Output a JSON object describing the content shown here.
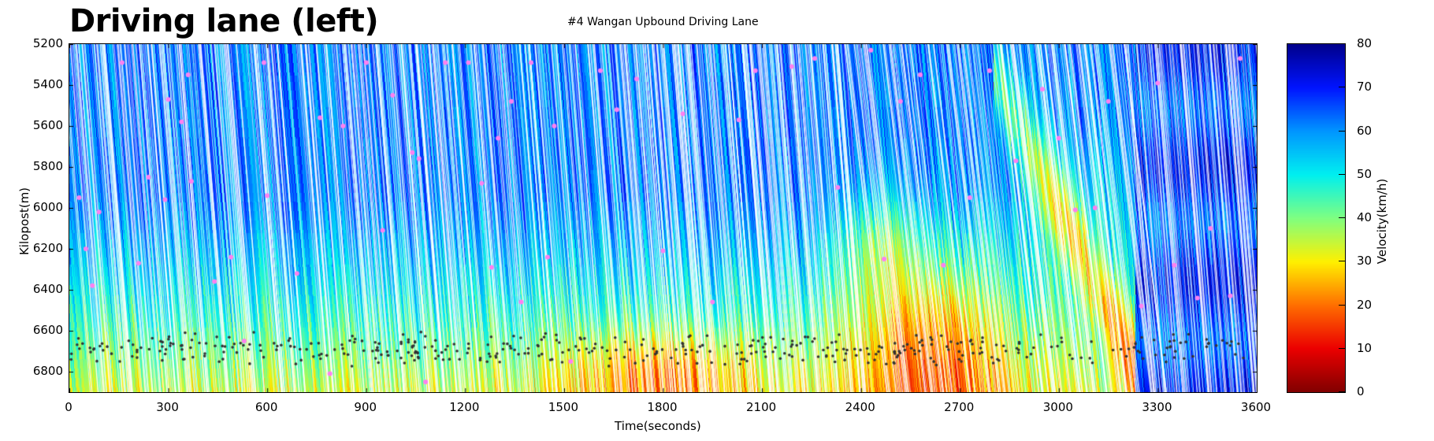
{
  "header": {
    "title": "Driving lane (left)",
    "subtitle": "#4 Wangan Upbound Driving Lane"
  },
  "chart_data": {
    "type": "heatmap",
    "title": "#4 Wangan Upbound Driving Lane",
    "xlabel": "Time(seconds)",
    "ylabel": "Kilopost(m)",
    "xlim": [
      0,
      3600
    ],
    "ylim": [
      6900,
      5200
    ],
    "xticks": [
      "0",
      "300",
      "600",
      "900",
      "1200",
      "1500",
      "1800",
      "2100",
      "2400",
      "2700",
      "3000",
      "3300",
      "3600"
    ],
    "yticks": [
      "5200",
      "5400",
      "5600",
      "5800",
      "6000",
      "6200",
      "6400",
      "6600",
      "6800"
    ],
    "colorbar": {
      "label": "Velocity(km/h)",
      "range": [
        0,
        80
      ],
      "ticks": [
        "0",
        "10",
        "20",
        "30",
        "40",
        "50",
        "60",
        "70",
        "80"
      ],
      "colormap": "jet"
    },
    "velocity_regions": [
      {
        "t": [
          0,
          3200
        ],
        "k": [
          5200,
          6300
        ],
        "velocity": 60
      },
      {
        "t": [
          0,
          3200
        ],
        "k": [
          6400,
          6900
        ],
        "velocity": 38
      },
      {
        "t": [
          1600,
          2000
        ],
        "k": [
          6500,
          6900
        ],
        "velocity": 20
      },
      {
        "t": [
          2400,
          2800
        ],
        "k": [
          6100,
          6900
        ],
        "velocity": 25
      },
      {
        "t": [
          2850,
          3200
        ],
        "k": [
          5500,
          6700
        ],
        "velocity": 32
      },
      {
        "t": [
          3200,
          3600
        ],
        "k": [
          5200,
          6900
        ],
        "velocity": 70
      }
    ],
    "pink_markers": [
      [
        30,
        5950
      ],
      [
        50,
        6200
      ],
      [
        70,
        6380
      ],
      [
        90,
        6020
      ],
      [
        160,
        5290
      ],
      [
        210,
        6270
      ],
      [
        240,
        5850
      ],
      [
        290,
        5960
      ],
      [
        300,
        5470
      ],
      [
        340,
        5580
      ],
      [
        360,
        5350
      ],
      [
        370,
        5870
      ],
      [
        440,
        6360
      ],
      [
        490,
        6240
      ],
      [
        530,
        6650
      ],
      [
        590,
        5290
      ],
      [
        600,
        5940
      ],
      [
        690,
        6320
      ],
      [
        760,
        5560
      ],
      [
        790,
        6810
      ],
      [
        830,
        5600
      ],
      [
        900,
        5290
      ],
      [
        950,
        6110
      ],
      [
        980,
        5450
      ],
      [
        1040,
        5730
      ],
      [
        1060,
        5760
      ],
      [
        1080,
        6850
      ],
      [
        1140,
        5290
      ],
      [
        1210,
        5290
      ],
      [
        1250,
        5880
      ],
      [
        1280,
        6290
      ],
      [
        1300,
        5660
      ],
      [
        1340,
        5480
      ],
      [
        1370,
        6460
      ],
      [
        1400,
        5290
      ],
      [
        1450,
        6240
      ],
      [
        1470,
        5600
      ],
      [
        1520,
        6750
      ],
      [
        1610,
        5330
      ],
      [
        1660,
        5520
      ],
      [
        1720,
        5370
      ],
      [
        1800,
        6210
      ],
      [
        1860,
        5540
      ],
      [
        1950,
        6460
      ],
      [
        2030,
        5570
      ],
      [
        2080,
        5330
      ],
      [
        2190,
        5310
      ],
      [
        2260,
        5270
      ],
      [
        2330,
        5900
      ],
      [
        2430,
        5230
      ],
      [
        2470,
        6250
      ],
      [
        2520,
        5480
      ],
      [
        2580,
        5350
      ],
      [
        2650,
        6280
      ],
      [
        2730,
        5950
      ],
      [
        2790,
        5330
      ],
      [
        2870,
        5770
      ],
      [
        2950,
        5420
      ],
      [
        3000,
        5660
      ],
      [
        3050,
        6010
      ],
      [
        3110,
        6000
      ],
      [
        3150,
        5480
      ],
      [
        3250,
        6480
      ],
      [
        3300,
        5390
      ],
      [
        3350,
        6280
      ],
      [
        3420,
        6440
      ],
      [
        3460,
        6100
      ],
      [
        3520,
        6430
      ],
      [
        3550,
        5270
      ]
    ],
    "black_markers_band": {
      "k": [
        6580,
        6760
      ],
      "t": [
        0,
        3560
      ]
    }
  }
}
